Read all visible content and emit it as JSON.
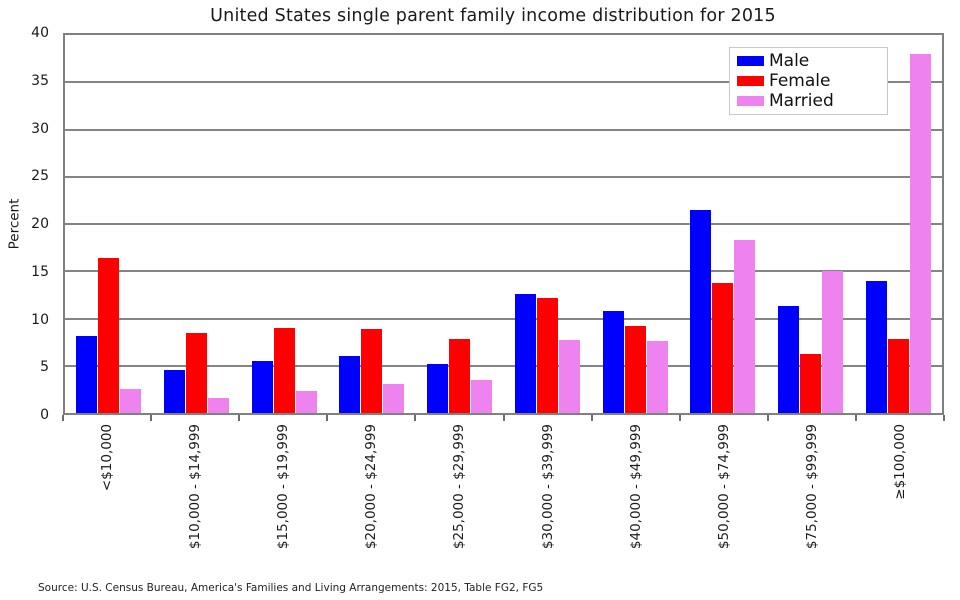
{
  "page": {
    "background": "#ffffff"
  },
  "chart_data": {
    "type": "bar",
    "title": "United States single parent family income distribution for 2015",
    "xlabel": "",
    "ylabel": "Percent",
    "ylim": [
      0,
      40
    ],
    "ytick_step": 5,
    "grid": true,
    "legend_position": "upper right",
    "categories": [
      "<$10,000",
      "$10,000 - $14,999",
      "$15,000 - $19,999",
      "$20,000 - $24,999",
      "$25,000 - $29,999",
      "$30,000 - $39,999",
      "$40,000 - $49,999",
      "$50,000 - $74,999",
      "$75,000 - $99,999",
      "≥$100,000"
    ],
    "series": [
      {
        "name": "Male",
        "color": "#0000ff",
        "values": [
          8.1,
          4.6,
          5.5,
          6.0,
          5.2,
          12.6,
          10.8,
          21.5,
          11.3,
          14.0
        ]
      },
      {
        "name": "Female",
        "color": "#ff0000",
        "values": [
          16.4,
          8.5,
          9.0,
          8.9,
          7.8,
          12.2,
          9.2,
          13.8,
          6.2,
          7.8
        ]
      },
      {
        "name": "Married",
        "color": "#ee82ee",
        "values": [
          2.5,
          1.6,
          2.3,
          3.1,
          3.5,
          7.7,
          7.6,
          18.3,
          15.0,
          38.0
        ]
      }
    ],
    "source_note": "Source: U.S. Census Bureau, America's Families and Living Arrangements: 2015, Table FG2, FG5",
    "colors": {
      "grid": "#848484",
      "frame": "#808080",
      "background": "#ffffff"
    }
  }
}
